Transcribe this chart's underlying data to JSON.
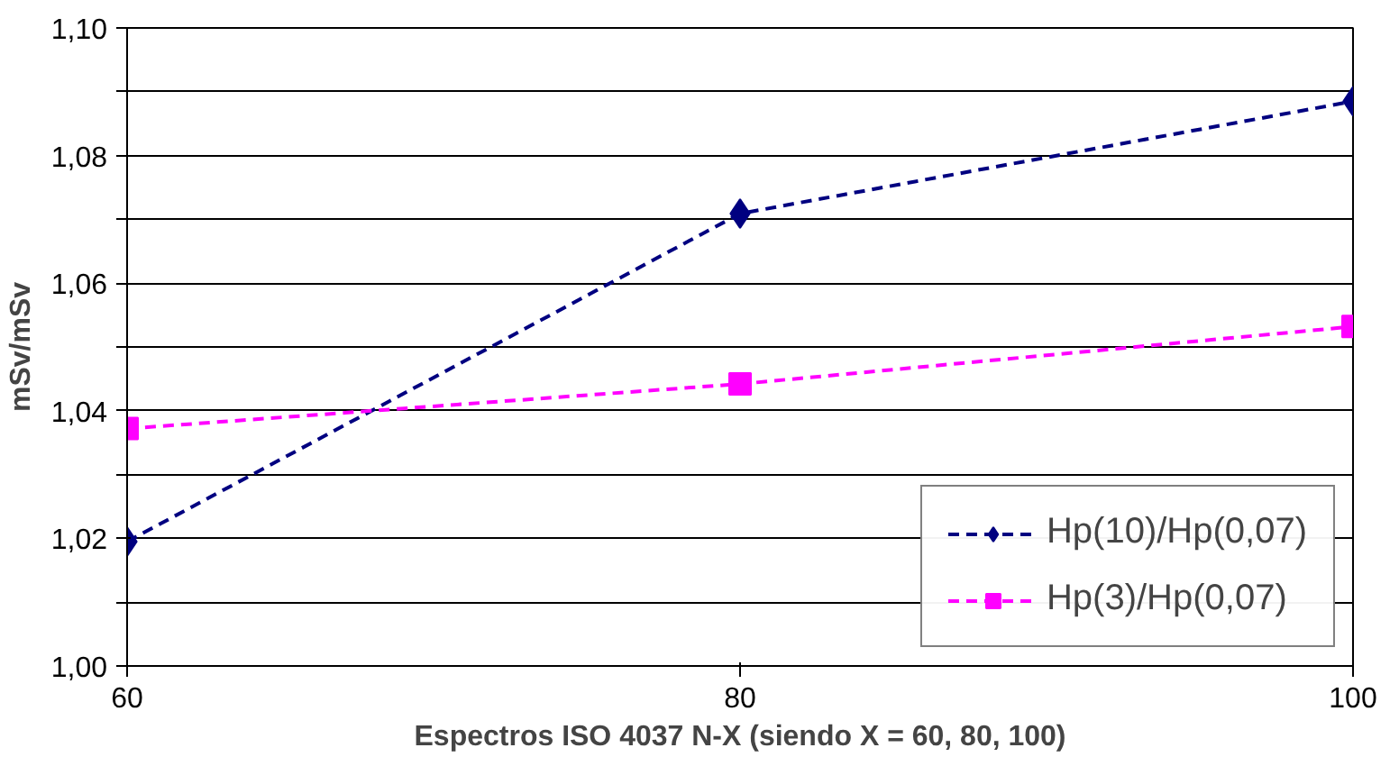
{
  "chart_data": {
    "type": "line",
    "xlabel": "Espectros ISO 4037 N-X (siendo X = 60, 80, 100)",
    "ylabel": "mSv/mSv",
    "x": [
      60,
      80,
      100
    ],
    "xlim": [
      60,
      100
    ],
    "xticks": [
      60,
      80,
      100
    ],
    "ylim": [
      1.0,
      1.1
    ],
    "yticks": [
      {
        "value": 1.0,
        "label": "1,00"
      },
      {
        "value": 1.01,
        "label": null
      },
      {
        "value": 1.02,
        "label": "1,02"
      },
      {
        "value": 1.03,
        "label": null
      },
      {
        "value": 1.04,
        "label": "1,04"
      },
      {
        "value": 1.05,
        "label": null
      },
      {
        "value": 1.06,
        "label": "1,06"
      },
      {
        "value": 1.07,
        "label": null
      },
      {
        "value": 1.08,
        "label": "1,08"
      },
      {
        "value": 1.09,
        "label": null
      },
      {
        "value": 1.1,
        "label": "1,10"
      }
    ],
    "grid": "y",
    "legend": "bottom right",
    "line_style": "dashed",
    "series": [
      {
        "name": "Hp(10)/Hp(0,07)",
        "color": "#000080",
        "marker": "diamond",
        "values": [
          1.0195,
          1.0709,
          1.0885
        ]
      },
      {
        "name": "Hp(3)/Hp(0,07)",
        "color": "#ff00ff",
        "marker": "square",
        "values": [
          1.0372,
          1.0442,
          1.0532
        ]
      }
    ]
  }
}
